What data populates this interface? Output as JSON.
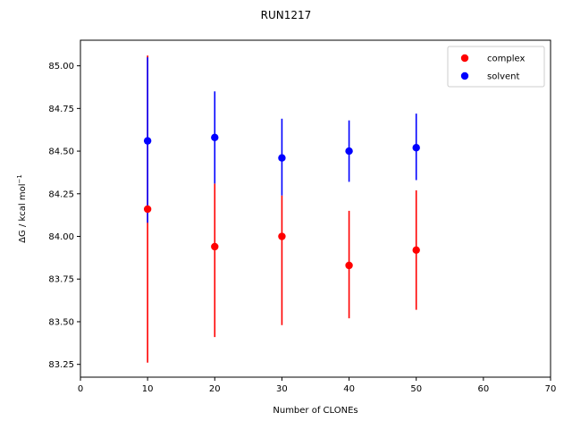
{
  "chart_data": {
    "type": "scatter",
    "title": "RUN1217",
    "xlabel": "Number of CLONEs",
    "ylabel": "ΔG / kcal mol",
    "ylabel_superscript": "−1",
    "xlim": [
      0,
      70
    ],
    "ylim": [
      83.175,
      85.15
    ],
    "xticks": [
      0,
      10,
      20,
      30,
      40,
      50,
      60,
      70
    ],
    "yticks": [
      83.25,
      83.5,
      83.75,
      84.0,
      84.25,
      84.5,
      84.75,
      85.0
    ],
    "yticks_labels": [
      "83.25",
      "83.50",
      "83.75",
      "84.00",
      "84.25",
      "84.50",
      "84.75",
      "85.00"
    ],
    "legend_position": "top-right",
    "grid": false,
    "series": [
      {
        "name": "complex",
        "color": "#ff0000",
        "x": [
          10,
          20,
          30,
          40,
          50
        ],
        "y": [
          84.16,
          83.94,
          84.0,
          83.83,
          83.92
        ],
        "yerr_low": [
          83.26,
          83.41,
          83.48,
          83.52,
          83.57
        ],
        "yerr_high": [
          85.06,
          84.31,
          84.24,
          84.15,
          84.27
        ]
      },
      {
        "name": "solvent",
        "color": "#0000ff",
        "x": [
          10,
          20,
          30,
          40,
          50
        ],
        "y": [
          84.56,
          84.58,
          84.46,
          84.5,
          84.52
        ],
        "yerr_low": [
          84.08,
          84.31,
          84.24,
          84.32,
          84.33
        ],
        "yerr_high": [
          85.05,
          84.85,
          84.69,
          84.68,
          84.72
        ]
      }
    ]
  }
}
